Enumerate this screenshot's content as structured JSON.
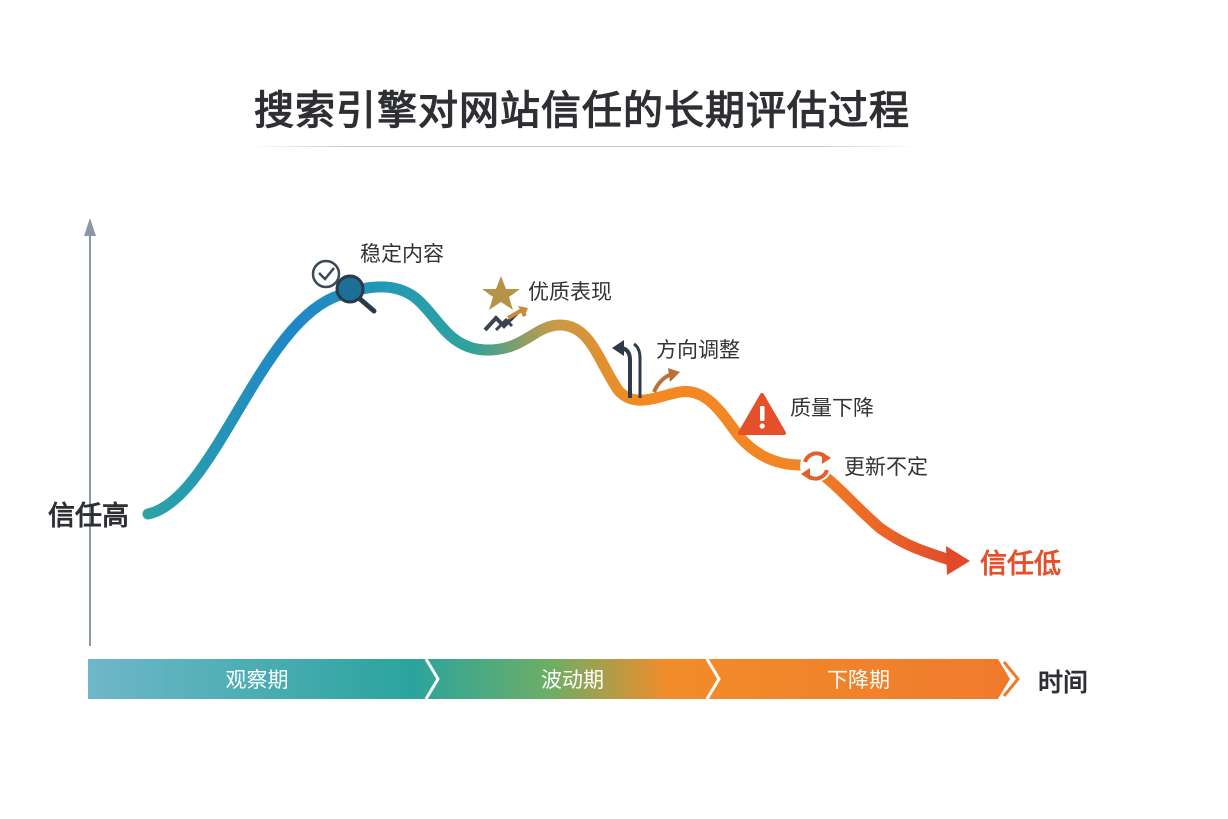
{
  "title": "搜索引擎对网站信任的长期评估过程",
  "y_high_label": "信任高",
  "end_label": "信任低",
  "x_axis_label": "时间",
  "milestones": [
    {
      "label": "稳定内容",
      "icon": "magnifier-check-icon"
    },
    {
      "label": "优质表现",
      "icon": "star-trend-icon"
    },
    {
      "label": "方向调整",
      "icon": "direction-arrows-icon"
    },
    {
      "label": "质量下降",
      "icon": "warning-icon"
    },
    {
      "label": "更新不定",
      "icon": "refresh-icon"
    }
  ],
  "phases": [
    {
      "label": "观察期"
    },
    {
      "label": "波动期"
    },
    {
      "label": "下降期"
    }
  ],
  "colors": {
    "teal": "#2a9aa0",
    "blue": "#1f7fc4",
    "orange": "#f08a24",
    "red": "#e4502a",
    "dark": "#2f3b48"
  }
}
